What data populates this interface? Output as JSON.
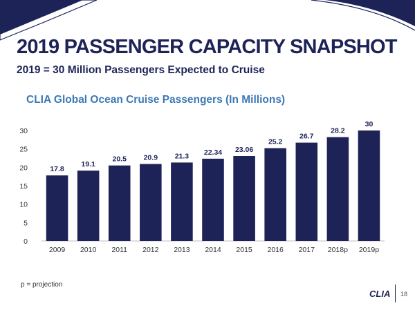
{
  "slide": {
    "title": "2019 PASSENGER CAPACITY SNAPSHOT",
    "subtitle": "2019 = 30 Million Passengers Expected to Cruise",
    "footnote": "p = projection",
    "logo_text": "CLIA",
    "page_number": "18",
    "colors": {
      "navy": "#1d2357",
      "accent_blue": "#3c78b4",
      "bar": "#1d2357"
    }
  },
  "chart_data": {
    "type": "bar",
    "title": "CLIA Global Ocean Cruise Passengers (In Millions)",
    "xlabel": "",
    "ylabel": "",
    "categories": [
      "2009",
      "2010",
      "2011",
      "2012",
      "2013",
      "2014",
      "2015",
      "2016",
      "2017",
      "2018p",
      "2019p"
    ],
    "values": [
      17.8,
      19.1,
      20.5,
      20.9,
      21.3,
      22.34,
      23.06,
      25.2,
      26.7,
      28.2,
      30
    ],
    "value_labels": [
      "17.8",
      "19.1",
      "20.5",
      "20.9",
      "21.3",
      "22.34",
      "23.06",
      "25.2",
      "26.7",
      "28.2",
      "30"
    ],
    "ylim": [
      0,
      30
    ],
    "yticks": [
      0,
      5,
      10,
      15,
      20,
      25,
      30
    ],
    "grid": false,
    "legend": "none"
  }
}
